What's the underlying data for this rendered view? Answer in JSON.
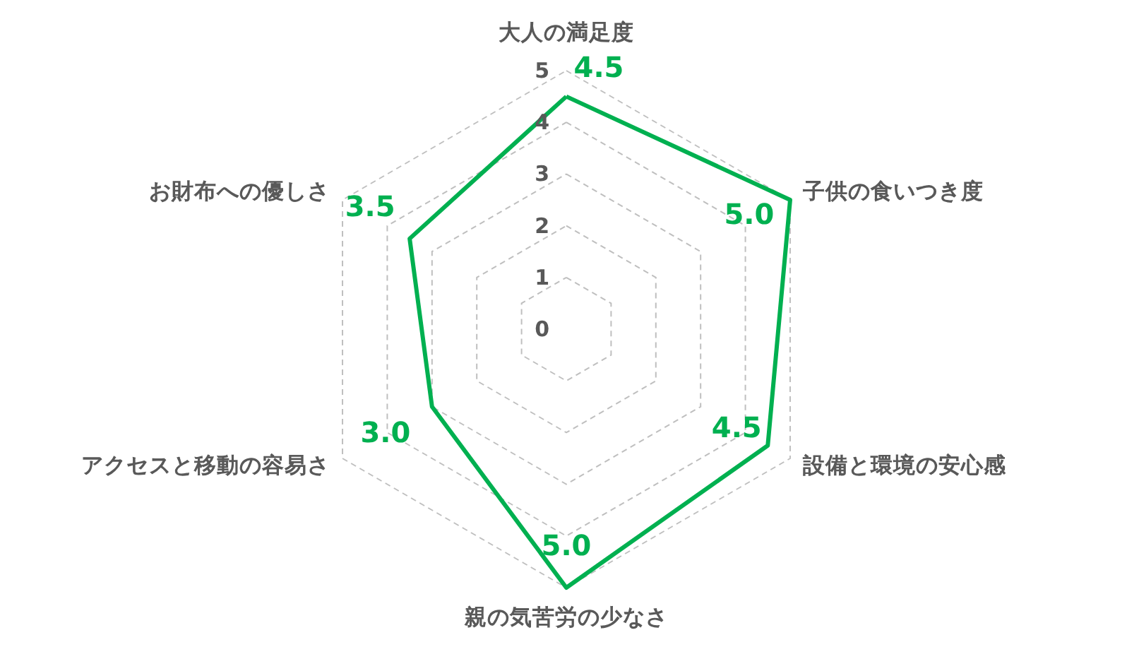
{
  "chart_data": {
    "type": "radar",
    "categories": [
      "大人の満足度",
      "子供の食いつき度",
      "設備と環境の安心感",
      "親の気苦労の少なさ",
      "アクセスと移動の容易さ",
      "お財布への優しさ"
    ],
    "series": [
      {
        "color": "#00b050",
        "values": [
          4.5,
          5.0,
          4.5,
          5.0,
          3.0,
          3.5
        ],
        "value_labels": [
          "4.5",
          "5.0",
          "4.5",
          "5.0",
          "3.0",
          "3.5"
        ]
      }
    ],
    "ylim": [
      0,
      5
    ],
    "yticks": [
      0,
      1,
      2,
      3,
      4,
      5
    ],
    "grid": true
  }
}
